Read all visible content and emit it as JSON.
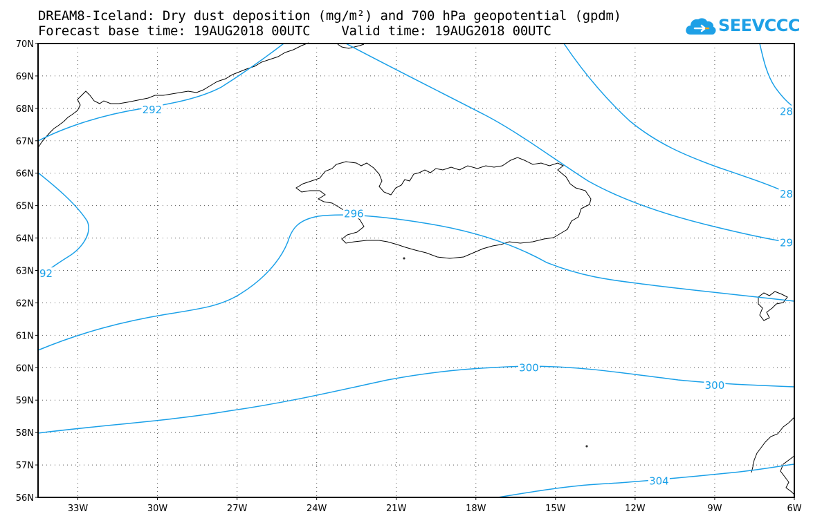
{
  "header": {
    "title_line1": "DREAM8-Iceland: Dry dust deposition (mg/m²) and 700 hPa geopotential (gpdm)",
    "title_line2": "Forecast base time: 19AUG2018 00UTC    Valid time: 19AUG2018 00UTC"
  },
  "logo": {
    "text": "SEEVCCC",
    "icon": "cloud-icon"
  },
  "map": {
    "lon_range": [
      -34.5,
      -6
    ],
    "lat_range": [
      56,
      70
    ],
    "grid": "dotted",
    "lat_labels": [
      "70N",
      "69N",
      "68N",
      "67N",
      "66N",
      "65N",
      "64N",
      "63N",
      "62N",
      "61N",
      "60N",
      "59N",
      "58N",
      "57N",
      "56N"
    ],
    "lon_labels": [
      "33W",
      "30W",
      "27W",
      "24W",
      "21W",
      "18W",
      "15W",
      "12W",
      "9W",
      "6W"
    ],
    "contour_color": "#1aa0e8",
    "contour_labels": [
      {
        "text": "292",
        "lon": -30.2,
        "lat": 67.95
      },
      {
        "text": "92",
        "lon": -34.2,
        "lat": 62.9
      },
      {
        "text": "296",
        "lon": -22.6,
        "lat": 64.75
      },
      {
        "text": "300",
        "lon": -16.0,
        "lat": 60.0
      },
      {
        "text": "300",
        "lon": -9.0,
        "lat": 59.45
      },
      {
        "text": "304",
        "lon": -11.1,
        "lat": 56.5
      },
      {
        "text": "28",
        "lon": -6.3,
        "lat": 67.9
      },
      {
        "text": "28",
        "lon": -6.3,
        "lat": 65.35
      },
      {
        "text": "29",
        "lon": -6.3,
        "lat": 63.85
      }
    ]
  }
}
